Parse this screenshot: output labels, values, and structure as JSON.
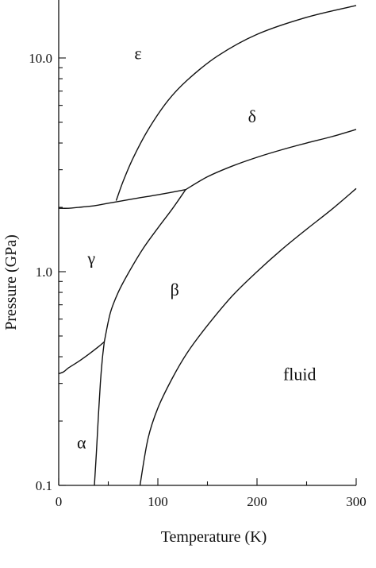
{
  "chart_data": {
    "type": "line",
    "title": "",
    "xlabel": "Temperature (K)",
    "ylabel": "Pressure (GPa)",
    "xlim": [
      0,
      300
    ],
    "ylim": [
      0.1,
      20
    ],
    "yscale": "log",
    "grid": false,
    "x_ticks": [
      {
        "value": 0,
        "label": "0"
      },
      {
        "value": 100,
        "label": "100"
      },
      {
        "value": 200,
        "label": "200"
      },
      {
        "value": 300,
        "label": "300"
      }
    ],
    "y_ticks": [
      {
        "value": 0.1,
        "label": "0.1"
      },
      {
        "value": 1.0,
        "label": "1.0"
      },
      {
        "value": 10.0,
        "label": "10.0"
      }
    ],
    "region_labels": [
      {
        "text": "ε",
        "x": 80,
        "y": 10.5
      },
      {
        "text": "δ",
        "x": 195,
        "y": 5.3
      },
      {
        "text": "γ",
        "x": 33,
        "y": 1.15
      },
      {
        "text": "β",
        "x": 117,
        "y": 0.82
      },
      {
        "text": "fluid",
        "x": 243,
        "y": 0.33
      },
      {
        "text": "α",
        "x": 23,
        "y": 0.158
      }
    ],
    "series": [
      {
        "x": [
          0,
          10,
          20,
          30,
          40,
          50,
          60,
          80,
          100,
          128
        ],
        "y": [
          1.98,
          1.98,
          2.0,
          2.02,
          2.05,
          2.09,
          2.13,
          2.21,
          2.29,
          2.42
        ]
      },
      {
        "x": [
          58,
          65,
          75,
          90,
          110,
          130,
          160,
          200,
          250,
          300
        ],
        "y": [
          2.15,
          2.65,
          3.4,
          4.6,
          6.3,
          7.9,
          10.2,
          12.9,
          15.5,
          17.6
        ]
      },
      {
        "x": [
          128,
          150,
          175,
          200,
          225,
          250,
          275,
          300
        ],
        "y": [
          2.42,
          2.78,
          3.12,
          3.43,
          3.72,
          4.0,
          4.28,
          4.63
        ]
      },
      {
        "x": [
          0,
          5,
          10,
          20,
          30,
          40,
          46
        ],
        "y": [
          0.333,
          0.34,
          0.355,
          0.38,
          0.41,
          0.445,
          0.47
        ]
      },
      {
        "x": [
          36,
          38,
          40,
          42,
          44,
          46
        ],
        "y": [
          0.1,
          0.142,
          0.21,
          0.3,
          0.39,
          0.47
        ]
      },
      {
        "x": [
          46,
          52,
          60,
          70,
          85,
          100,
          115,
          128
        ],
        "y": [
          0.47,
          0.64,
          0.8,
          0.98,
          1.28,
          1.6,
          1.98,
          2.42
        ]
      },
      {
        "x": [
          82,
          90,
          100,
          115,
          130,
          150,
          175,
          200,
          225,
          250,
          275,
          300
        ],
        "y": [
          0.1,
          0.165,
          0.23,
          0.32,
          0.42,
          0.56,
          0.77,
          1.0,
          1.27,
          1.58,
          1.95,
          2.45
        ]
      }
    ]
  }
}
